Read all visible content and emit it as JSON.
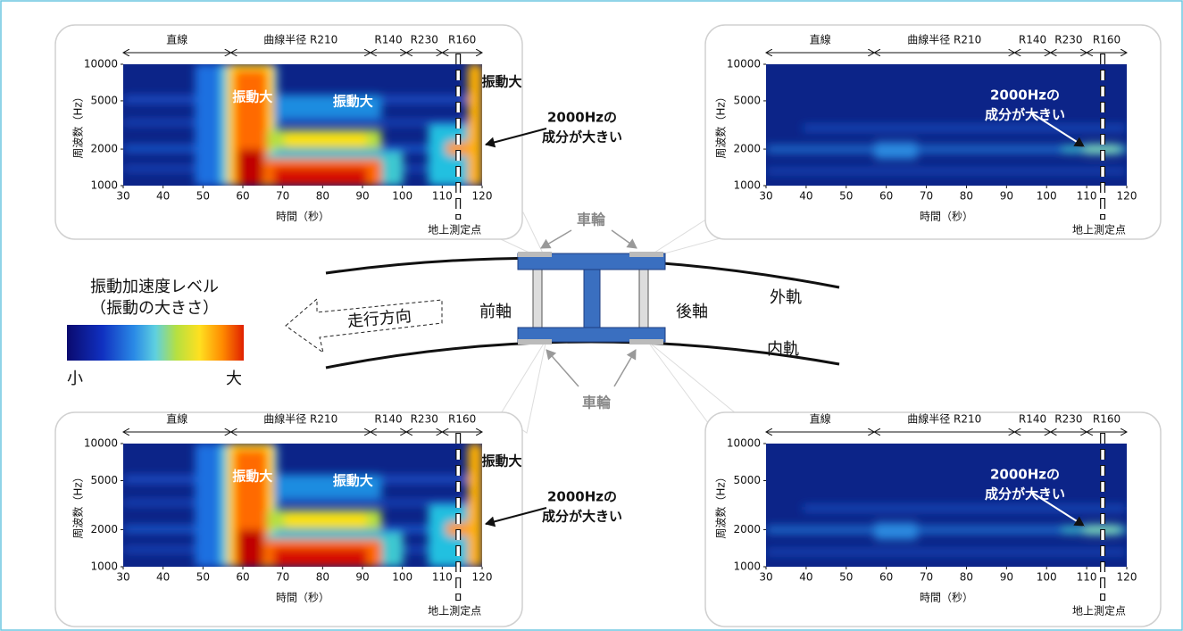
{
  "panels": [
    {
      "segments": [
        {
          "label": "直線",
          "start": 30,
          "end": 57
        },
        {
          "label": "曲線半径 R210",
          "start": 57,
          "end": 92
        },
        {
          "label": "R140",
          "start": 92,
          "end": 101
        },
        {
          "label": "R230",
          "start": 101,
          "end": 110
        },
        {
          "label": "R160",
          "start": 110,
          "end": 120
        }
      ],
      "xlim": [
        30,
        120
      ],
      "xticks": [
        30,
        40,
        50,
        60,
        70,
        80,
        90,
        100,
        110,
        120
      ],
      "ylim": [
        1000,
        10000
      ],
      "yticks": [
        1000,
        2000,
        5000,
        10000
      ],
      "log_y": true,
      "xlabel": "時間（秒）",
      "ylabel": "周波数（Hz）",
      "measurement_point": {
        "x": 114,
        "label": "地上測定点"
      },
      "notes": [
        "振動大",
        "振動大",
        "振動大"
      ],
      "callout": [
        "2000Hzの",
        "成分が大きい"
      ]
    },
    {
      "segments": [
        {
          "label": "直線",
          "start": 30,
          "end": 57
        },
        {
          "label": "曲線半径 R210",
          "start": 57,
          "end": 92
        },
        {
          "label": "R140",
          "start": 92,
          "end": 101
        },
        {
          "label": "R230",
          "start": 101,
          "end": 110
        },
        {
          "label": "R160",
          "start": 110,
          "end": 120
        }
      ],
      "xlim": [
        30,
        120
      ],
      "xticks": [
        30,
        40,
        50,
        60,
        70,
        80,
        90,
        100,
        110,
        120
      ],
      "ylim": [
        1000,
        10000
      ],
      "yticks": [
        1000,
        2000,
        5000,
        10000
      ],
      "log_y": true,
      "xlabel": "時間（秒）",
      "ylabel": "周波数（Hz）",
      "measurement_point": {
        "x": 114,
        "label": "地上測定点"
      },
      "callout": [
        "2000Hzの",
        "成分が大きい"
      ]
    },
    {
      "segments": [
        {
          "label": "直線",
          "start": 30,
          "end": 57
        },
        {
          "label": "曲線半径 R210",
          "start": 57,
          "end": 92
        },
        {
          "label": "R140",
          "start": 92,
          "end": 101
        },
        {
          "label": "R230",
          "start": 101,
          "end": 110
        },
        {
          "label": "R160",
          "start": 110,
          "end": 120
        }
      ],
      "xlim": [
        30,
        120
      ],
      "xticks": [
        30,
        40,
        50,
        60,
        70,
        80,
        90,
        100,
        110,
        120
      ],
      "ylim": [
        1000,
        10000
      ],
      "yticks": [
        1000,
        2000,
        5000,
        10000
      ],
      "log_y": true,
      "xlabel": "時間（秒）",
      "ylabel": "周波数（Hz）",
      "measurement_point": {
        "x": 114,
        "label": "地上測定点"
      },
      "notes": [
        "振動大",
        "振動大",
        "振動大"
      ],
      "callout": [
        "2000Hzの",
        "成分が大きい"
      ]
    },
    {
      "segments": [
        {
          "label": "直線",
          "start": 30,
          "end": 57
        },
        {
          "label": "曲線半径 R210",
          "start": 57,
          "end": 92
        },
        {
          "label": "R140",
          "start": 92,
          "end": 101
        },
        {
          "label": "R230",
          "start": 101,
          "end": 110
        },
        {
          "label": "R160",
          "start": 110,
          "end": 120
        }
      ],
      "xlim": [
        30,
        120
      ],
      "xticks": [
        30,
        40,
        50,
        60,
        70,
        80,
        90,
        100,
        110,
        120
      ],
      "ylim": [
        1000,
        10000
      ],
      "yticks": [
        1000,
        2000,
        5000,
        10000
      ],
      "log_y": true,
      "xlabel": "時間（秒）",
      "ylabel": "周波数（Hz）",
      "measurement_point": {
        "x": 114,
        "label": "地上測定点"
      },
      "callout": [
        "2000Hzの",
        "成分が大きい"
      ]
    }
  ],
  "legend": {
    "title": "振動加速度レベル",
    "subtitle": "（振動の大きさ）",
    "min_label": "小",
    "max_label": "大"
  },
  "diagram": {
    "wheel_top": "車輪",
    "wheel_bottom": "車輪",
    "direction": "走行方向",
    "front_axle": "前軸",
    "rear_axle": "後軸",
    "outer_rail": "外軌",
    "inner_rail": "内軌"
  }
}
